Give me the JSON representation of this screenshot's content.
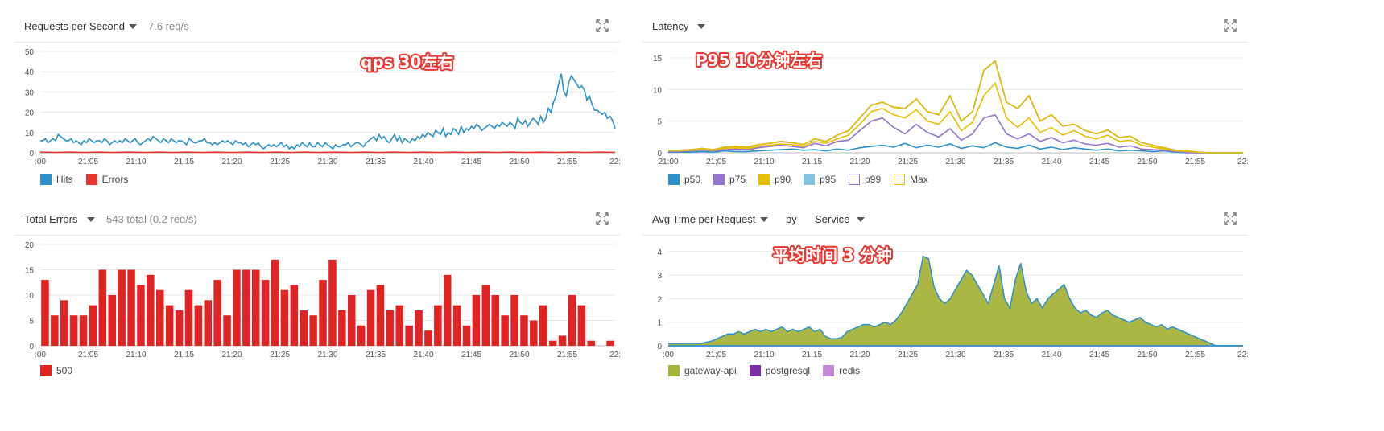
{
  "panels": {
    "rps": {
      "title": "Requests per Second",
      "subtitle": "7.6 req/s",
      "annotation": "qps 30左右",
      "legend": [
        {
          "label": "Hits",
          "color": "#2f8fca"
        },
        {
          "label": "Errors",
          "color": "#e8362f"
        }
      ]
    },
    "latency": {
      "title": "Latency",
      "annotation": "P95 10分钟左右",
      "legend": [
        {
          "label": "p50",
          "color": "#2f8fca",
          "hollow": false
        },
        {
          "label": "p75",
          "color": "#9575cd",
          "hollow": false
        },
        {
          "label": "p90",
          "color": "#e6c000",
          "hollow": false
        },
        {
          "label": "p95",
          "color": "#84c4e3",
          "hollow": false
        },
        {
          "label": "p99",
          "color": "#9575cd",
          "hollow": true
        },
        {
          "label": "Max",
          "color": "#e6c000",
          "hollow": true
        }
      ]
    },
    "errors": {
      "title": "Total Errors",
      "subtitle": "543 total (0.2 req/s)",
      "legend": [
        {
          "label": "500",
          "color": "#e02424"
        }
      ]
    },
    "avgtime": {
      "title": "Avg Time per Request",
      "by_label": "by",
      "group_by": "Service",
      "annotation": "平均时间 3 分钟",
      "legend": [
        {
          "label": "gateway-api",
          "color": "#a6b33a"
        },
        {
          "label": "postgresql",
          "color": "#7b2fa6"
        },
        {
          "label": "redis",
          "color": "#c48ad6"
        }
      ]
    }
  },
  "chart_data": [
    {
      "type": "line",
      "xlabel": "",
      "ylabel": "",
      "x_ticks": [
        ":00",
        "21:05",
        "21:10",
        "21:15",
        "21:20",
        "21:25",
        "21:30",
        "21:35",
        "21:40",
        "21:45",
        "21:50",
        "21:55",
        "22:"
      ],
      "ylim": [
        0,
        50
      ],
      "y_ticks": [
        0,
        10,
        20,
        30,
        40,
        50
      ],
      "series": [
        {
          "name": "Hits",
          "color": "#2f8fca",
          "values": [
            6,
            6,
            7,
            5,
            6,
            7,
            6,
            9,
            8,
            7,
            6,
            6,
            7,
            5,
            6,
            5,
            4,
            6,
            5,
            7,
            6,
            5,
            6,
            6,
            5,
            7,
            6,
            4,
            5,
            6,
            5,
            6,
            5,
            7,
            6,
            5,
            6,
            7,
            5,
            4,
            5,
            6,
            7,
            6,
            8,
            7,
            6,
            5,
            7,
            6,
            5,
            7,
            6,
            5,
            6,
            6,
            5,
            4,
            7,
            6,
            5,
            5,
            6,
            6,
            7,
            5,
            5,
            4,
            5,
            4,
            5,
            6,
            5,
            6,
            5,
            4,
            6,
            5,
            5,
            4,
            5,
            3,
            4,
            5,
            4,
            5,
            3,
            2,
            3,
            4,
            3,
            4,
            3,
            4,
            5,
            3,
            4,
            2,
            3,
            2,
            4,
            3,
            5,
            4,
            3,
            5,
            3,
            3,
            5,
            4,
            3,
            5,
            4,
            3,
            2,
            4,
            3,
            3,
            4,
            4,
            5,
            3,
            4,
            5,
            5,
            4,
            3,
            5,
            6,
            7,
            8,
            6,
            9,
            7,
            8,
            6,
            5,
            7,
            9,
            6,
            8,
            5,
            7,
            6,
            5,
            7,
            6,
            8,
            7,
            9,
            8,
            10,
            9,
            8,
            11,
            10,
            9,
            12,
            8,
            10,
            9,
            12,
            11,
            9,
            13,
            10,
            12,
            11,
            13,
            12,
            14,
            13,
            11,
            12,
            13,
            14,
            13,
            12,
            14,
            13,
            15,
            14,
            13,
            15,
            14,
            12,
            17,
            15,
            14,
            16,
            13,
            15,
            17,
            16,
            14,
            18,
            15,
            17,
            22,
            20,
            25,
            28,
            34,
            39,
            30,
            28,
            35,
            38,
            36,
            34,
            32,
            33,
            31,
            26,
            28,
            24,
            21,
            21,
            20,
            19,
            20,
            17,
            18,
            16,
            12
          ]
        },
        {
          "name": "Errors",
          "color": "#e8362f",
          "values": [
            0.3,
            0.2,
            0.3,
            0.2,
            0.3,
            0.2,
            0.3,
            0.2,
            0.3,
            0.2,
            0.3,
            0.2,
            0.3,
            0.2,
            0.3,
            0.2,
            0.3,
            0.2,
            0.3,
            0.2,
            0.3,
            0.2,
            0.3,
            0.2,
            0.3,
            0.2,
            0.3,
            0.2,
            0.3,
            0.2,
            0.3,
            0.2,
            0.3,
            0.2,
            0.3,
            0.2,
            0.3,
            0.2,
            0.3,
            0.2
          ]
        }
      ]
    },
    {
      "type": "line",
      "xlabel": "",
      "ylabel": "",
      "x_ticks": [
        "21:00",
        "21:05",
        "21:10",
        "21:15",
        "21:20",
        "21:25",
        "21:30",
        "21:35",
        "21:40",
        "21:45",
        "21:50",
        "21:55",
        "22:"
      ],
      "ylim": [
        0,
        16
      ],
      "y_ticks": [
        0,
        5,
        10,
        15
      ],
      "series": [
        {
          "name": "p50",
          "color": "#2f8fca",
          "values": [
            0.1,
            0.1,
            0.1,
            0.2,
            0.1,
            0.3,
            0.2,
            0.2,
            0.3,
            0.4,
            0.5,
            0.6,
            0.4,
            0.5,
            0.3,
            0.6,
            0.4,
            0.8,
            1.0,
            1.2,
            0.9,
            1.5,
            0.8,
            1.2,
            0.9,
            1.4,
            0.7,
            1.1,
            0.8,
            1.6,
            0.9,
            0.7,
            1.2,
            0.6,
            0.9,
            0.5,
            0.8,
            0.6,
            0.4,
            0.6,
            0.3,
            0.4,
            0.3,
            0.2,
            0.3,
            0.1,
            0,
            0,
            0,
            0,
            0,
            0
          ]
        },
        {
          "name": "p75",
          "color": "#9575cd",
          "values": [
            0.2,
            0.2,
            0.3,
            0.4,
            0.3,
            0.5,
            0.6,
            0.5,
            0.8,
            1.0,
            1.2,
            1.0,
            0.8,
            1.5,
            1.1,
            1.8,
            2.0,
            3.5,
            5.0,
            5.5,
            4.0,
            3.0,
            4.5,
            3.2,
            2.5,
            3.8,
            2.0,
            3.0,
            5.5,
            6.0,
            3.0,
            2.2,
            3.0,
            1.8,
            2.4,
            1.6,
            2.0,
            1.4,
            1.2,
            1.5,
            0.9,
            1.1,
            0.6,
            0.5,
            0.4,
            0.2,
            0.1,
            0,
            0,
            0,
            0,
            0
          ]
        },
        {
          "name": "p90",
          "color": "#e6c000",
          "values": [
            0.3,
            0.3,
            0.4,
            0.5,
            0.4,
            0.7,
            0.8,
            0.7,
            1.0,
            1.2,
            1.4,
            1.3,
            1.0,
            1.8,
            1.5,
            2.2,
            2.8,
            4.5,
            6.5,
            7.0,
            6.0,
            5.5,
            6.8,
            5.0,
            4.5,
            6.5,
            3.5,
            4.8,
            9.0,
            11.0,
            5.5,
            4.0,
            5.5,
            3.2,
            4.0,
            2.8,
            3.5,
            2.6,
            2.2,
            2.8,
            1.8,
            2.0,
            1.2,
            0.9,
            0.6,
            0.3,
            0.2,
            0.1,
            0,
            0,
            0,
            0
          ]
        },
        {
          "name": "p95",
          "color": "#84c4e3",
          "values": [
            0.4,
            0.4,
            0.5,
            0.7,
            0.5,
            0.9,
            1.0,
            0.9,
            1.3,
            1.5,
            1.8,
            1.6,
            1.3,
            2.2,
            1.8,
            2.8,
            3.5,
            5.5,
            7.5,
            8.0,
            7.2,
            7.0,
            8.5,
            6.5,
            6.0,
            9.0,
            5.0,
            6.5,
            13.0,
            14.5,
            8.0,
            7.0,
            9.0,
            5.0,
            6.0,
            4.2,
            4.5,
            3.5,
            3.0,
            3.6,
            2.4,
            2.6,
            1.6,
            1.2,
            0.8,
            0.4,
            0.3,
            0.1,
            0,
            0,
            0,
            0
          ]
        },
        {
          "name": "p99",
          "color": "#9575cd",
          "values": [
            0.4,
            0.4,
            0.5,
            0.7,
            0.5,
            0.9,
            1.0,
            0.9,
            1.3,
            1.5,
            1.8,
            1.6,
            1.3,
            2.2,
            1.8,
            2.8,
            3.5,
            5.5,
            7.5,
            8.0,
            7.2,
            7.0,
            8.5,
            6.5,
            6.0,
            9.0,
            5.0,
            6.5,
            13.0,
            14.5,
            8.0,
            7.0,
            9.0,
            5.0,
            6.0,
            4.2,
            4.5,
            3.5,
            3.0,
            3.6,
            2.4,
            2.6,
            1.6,
            1.2,
            0.8,
            0.4,
            0.3,
            0.1,
            0,
            0,
            0,
            0
          ]
        },
        {
          "name": "Max",
          "color": "#e6c000",
          "values": [
            0.4,
            0.4,
            0.5,
            0.7,
            0.5,
            0.9,
            1.0,
            0.9,
            1.3,
            1.5,
            1.8,
            1.6,
            1.3,
            2.2,
            1.8,
            2.8,
            3.5,
            5.5,
            7.5,
            8.0,
            7.2,
            7.0,
            8.5,
            6.5,
            6.0,
            9.0,
            5.0,
            6.5,
            13.0,
            14.5,
            8.0,
            7.0,
            9.0,
            5.0,
            6.0,
            4.2,
            4.5,
            3.5,
            3.0,
            3.6,
            2.4,
            2.6,
            1.6,
            1.2,
            0.8,
            0.4,
            0.3,
            0.1,
            0,
            0,
            0,
            0
          ]
        }
      ]
    },
    {
      "type": "bar",
      "xlabel": "",
      "ylabel": "",
      "x_ticks": [
        ":00",
        "21:05",
        "21:10",
        "21:15",
        "21:20",
        "21:25",
        "21:30",
        "21:35",
        "21:40",
        "21:45",
        "21:50",
        "21:55",
        "22:"
      ],
      "ylim": [
        0,
        20
      ],
      "y_ticks": [
        0,
        5,
        10,
        15,
        20
      ],
      "series": [
        {
          "name": "500",
          "color": "#e02424",
          "values": [
            13,
            6,
            9,
            6,
            6,
            8,
            15,
            10,
            15,
            15,
            12,
            14,
            11,
            8,
            7,
            11,
            8,
            9,
            13,
            6,
            15,
            15,
            15,
            13,
            17,
            11,
            12,
            7,
            6,
            13,
            17,
            7,
            10,
            4,
            11,
            12,
            7,
            8,
            4,
            7,
            3,
            8,
            14,
            8,
            4,
            10,
            12,
            10,
            6,
            10,
            6,
            5,
            8,
            1,
            2,
            10,
            8,
            1,
            0,
            1
          ]
        }
      ]
    },
    {
      "type": "area",
      "xlabel": "",
      "ylabel": "",
      "x_ticks": [
        ":00",
        "21:05",
        "21:10",
        "21:15",
        "21:20",
        "21:25",
        "21:30",
        "21:35",
        "21:40",
        "21:45",
        "21:50",
        "21:55",
        "22:"
      ],
      "ylim": [
        0,
        4.3
      ],
      "y_ticks": [
        0,
        1,
        2,
        3,
        4
      ],
      "series": [
        {
          "name": "gateway-api",
          "color": "#a6b33a",
          "values": [
            0.1,
            0.1,
            0.1,
            0.1,
            0.1,
            0.1,
            0.1,
            0.15,
            0.2,
            0.3,
            0.4,
            0.5,
            0.5,
            0.6,
            0.5,
            0.6,
            0.7,
            0.6,
            0.7,
            0.6,
            0.7,
            0.8,
            0.6,
            0.7,
            0.6,
            0.7,
            0.8,
            0.6,
            0.7,
            0.4,
            0.3,
            0.3,
            0.35,
            0.6,
            0.7,
            0.8,
            0.9,
            0.9,
            0.8,
            0.9,
            1.0,
            0.9,
            1.1,
            1.4,
            1.8,
            2.2,
            2.6,
            3.8,
            3.7,
            2.5,
            2.0,
            1.8,
            2.0,
            2.4,
            2.8,
            3.2,
            3.0,
            2.6,
            2.2,
            1.8,
            2.6,
            3.4,
            2.0,
            1.6,
            2.8,
            3.5,
            2.3,
            1.8,
            2.0,
            1.6,
            2.0,
            2.2,
            2.4,
            2.6,
            2.0,
            1.6,
            1.4,
            1.5,
            1.3,
            1.2,
            1.4,
            1.5,
            1.3,
            1.2,
            1.1,
            1.0,
            1.1,
            1.2,
            1.0,
            0.9,
            0.8,
            0.9,
            0.7,
            0.8,
            0.7,
            0.6,
            0.5,
            0.4,
            0.3,
            0.2,
            0.1,
            0,
            0,
            0,
            0,
            0,
            0
          ]
        },
        {
          "name": "postgresql",
          "color": "#7b2fa6",
          "values": [
            0,
            0,
            0
          ]
        },
        {
          "name": "redis",
          "color": "#c48ad6",
          "values": [
            0,
            0,
            0
          ]
        }
      ]
    }
  ]
}
